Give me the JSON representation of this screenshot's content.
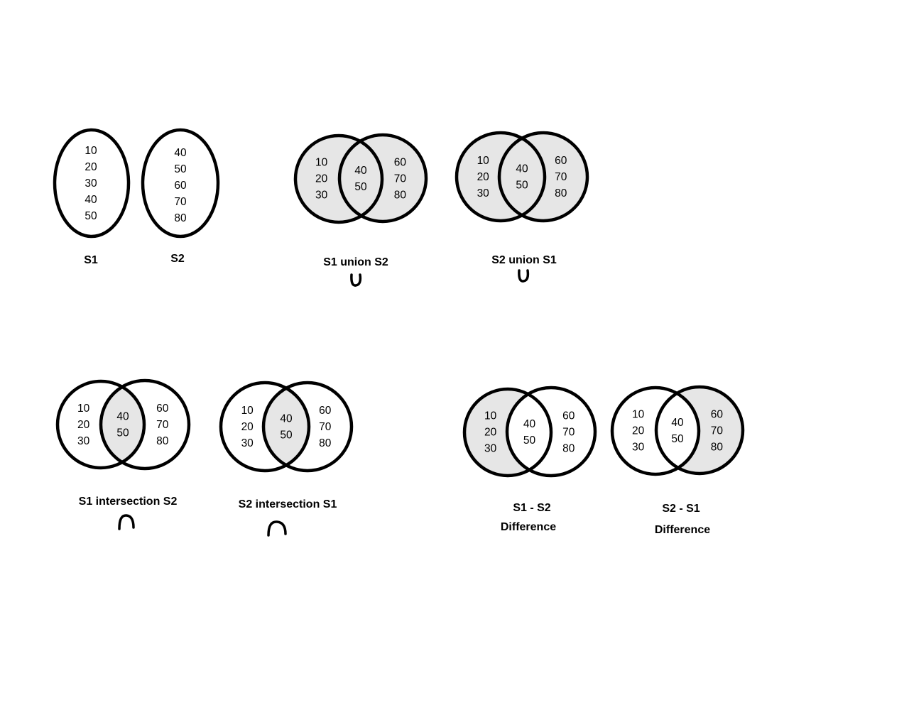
{
  "colors": {
    "stroke": "#000000",
    "shade": "#e6e6e6",
    "background": "#ffffff"
  },
  "sets": {
    "s1": {
      "name": "S1",
      "values": [
        "10",
        "20",
        "30",
        "40",
        "50"
      ]
    },
    "s2": {
      "name": "S2",
      "values": [
        "40",
        "50",
        "60",
        "70",
        "80"
      ]
    }
  },
  "diagrams": {
    "union_s1_s2": {
      "label": "S1 union S2",
      "left_only": [
        "10",
        "20",
        "30"
      ],
      "both": [
        "40",
        "50"
      ],
      "right_only": [
        "60",
        "70",
        "80"
      ],
      "shaded": [
        "left",
        "middle",
        "right"
      ],
      "symbol": "union-icon"
    },
    "union_s2_s1": {
      "label": "S2 union S1",
      "left_only": [
        "10",
        "20",
        "30"
      ],
      "both": [
        "40",
        "50"
      ],
      "right_only": [
        "60",
        "70",
        "80"
      ],
      "shaded": [
        "left",
        "middle",
        "right"
      ],
      "symbol": "union-icon"
    },
    "intersection_s1_s2": {
      "label": "S1 intersection S2",
      "left_only": [
        "10",
        "20",
        "30"
      ],
      "both": [
        "40",
        "50"
      ],
      "right_only": [
        "60",
        "70",
        "80"
      ],
      "shaded": [
        "middle"
      ],
      "symbol": "intersection-icon"
    },
    "intersection_s2_s1": {
      "label": "S2 intersection S1",
      "left_only": [
        "10",
        "20",
        "30"
      ],
      "both": [
        "40",
        "50"
      ],
      "right_only": [
        "60",
        "70",
        "80"
      ],
      "shaded": [
        "middle"
      ],
      "symbol": "intersection-icon"
    },
    "difference_s1_s2": {
      "label": "S1 - S2",
      "sublabel": "Difference",
      "left_only": [
        "10",
        "20",
        "30"
      ],
      "both": [
        "40",
        "50"
      ],
      "right_only": [
        "60",
        "70",
        "80"
      ],
      "shaded": [
        "left"
      ]
    },
    "difference_s2_s1": {
      "label": "S2 - S1",
      "sublabel": "Difference",
      "left_only": [
        "10",
        "20",
        "30"
      ],
      "both": [
        "40",
        "50"
      ],
      "right_only": [
        "60",
        "70",
        "80"
      ],
      "shaded": [
        "right"
      ]
    }
  }
}
